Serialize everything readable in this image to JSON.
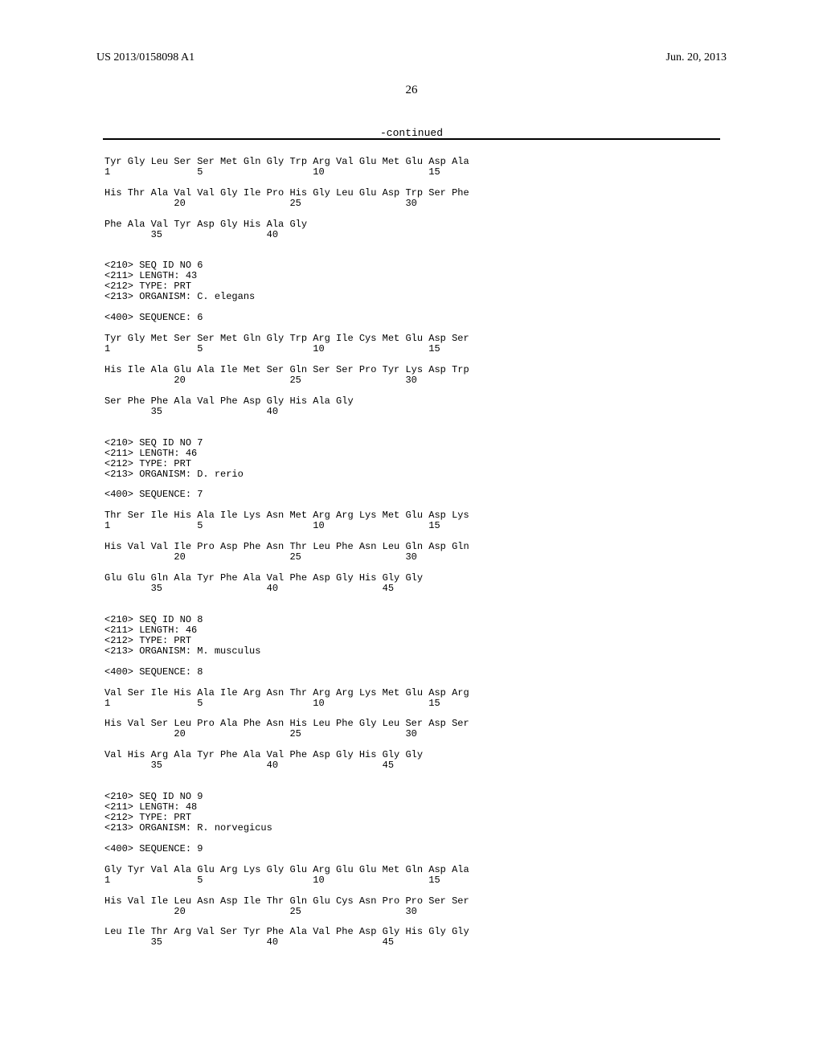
{
  "header": {
    "left": "US 2013/0158098 A1",
    "right": "Jun. 20, 2013"
  },
  "page_number": "26",
  "continued_label": "-continued",
  "seq5": {
    "row1": "Tyr Gly Leu Ser Ser Met Gln Gly Trp Arg Val Glu Met Glu Asp Ala",
    "pos1": "1               5                   10                  15",
    "row2": "His Thr Ala Val Val Gly Ile Pro His Gly Leu Glu Asp Trp Ser Phe",
    "pos2": "            20                  25                  30",
    "row3": "Phe Ala Val Tyr Asp Gly His Ala Gly",
    "pos3": "        35                  40"
  },
  "seq6": {
    "h1": "<210> SEQ ID NO 6",
    "h2": "<211> LENGTH: 43",
    "h3": "<212> TYPE: PRT",
    "h4": "<213> ORGANISM: C. elegans",
    "h5": "<400> SEQUENCE: 6",
    "row1": "Tyr Gly Met Ser Ser Met Gln Gly Trp Arg Ile Cys Met Glu Asp Ser",
    "pos1": "1               5                   10                  15",
    "row2": "His Ile Ala Glu Ala Ile Met Ser Gln Ser Ser Pro Tyr Lys Asp Trp",
    "pos2": "            20                  25                  30",
    "row3": "Ser Phe Phe Ala Val Phe Asp Gly His Ala Gly",
    "pos3": "        35                  40"
  },
  "seq7": {
    "h1": "<210> SEQ ID NO 7",
    "h2": "<211> LENGTH: 46",
    "h3": "<212> TYPE: PRT",
    "h4": "<213> ORGANISM: D. rerio",
    "h5": "<400> SEQUENCE: 7",
    "row1": "Thr Ser Ile His Ala Ile Lys Asn Met Arg Arg Lys Met Glu Asp Lys",
    "pos1": "1               5                   10                  15",
    "row2": "His Val Val Ile Pro Asp Phe Asn Thr Leu Phe Asn Leu Gln Asp Gln",
    "pos2": "            20                  25                  30",
    "row3": "Glu Glu Gln Ala Tyr Phe Ala Val Phe Asp Gly His Gly Gly",
    "pos3": "        35                  40                  45"
  },
  "seq8": {
    "h1": "<210> SEQ ID NO 8",
    "h2": "<211> LENGTH: 46",
    "h3": "<212> TYPE: PRT",
    "h4": "<213> ORGANISM: M. musculus",
    "h5": "<400> SEQUENCE: 8",
    "row1": "Val Ser Ile His Ala Ile Arg Asn Thr Arg Arg Lys Met Glu Asp Arg",
    "pos1": "1               5                   10                  15",
    "row2": "His Val Ser Leu Pro Ala Phe Asn His Leu Phe Gly Leu Ser Asp Ser",
    "pos2": "            20                  25                  30",
    "row3": "Val His Arg Ala Tyr Phe Ala Val Phe Asp Gly His Gly Gly",
    "pos3": "        35                  40                  45"
  },
  "seq9": {
    "h1": "<210> SEQ ID NO 9",
    "h2": "<211> LENGTH: 48",
    "h3": "<212> TYPE: PRT",
    "h4": "<213> ORGANISM: R. norvegicus",
    "h5": "<400> SEQUENCE: 9",
    "row1": "Gly Tyr Val Ala Glu Arg Lys Gly Glu Arg Glu Glu Met Gln Asp Ala",
    "pos1": "1               5                   10                  15",
    "row2": "His Val Ile Leu Asn Asp Ile Thr Gln Glu Cys Asn Pro Pro Ser Ser",
    "pos2": "            20                  25                  30",
    "row3": "Leu Ile Thr Arg Val Ser Tyr Phe Ala Val Phe Asp Gly His Gly Gly",
    "pos3": "        35                  40                  45"
  }
}
